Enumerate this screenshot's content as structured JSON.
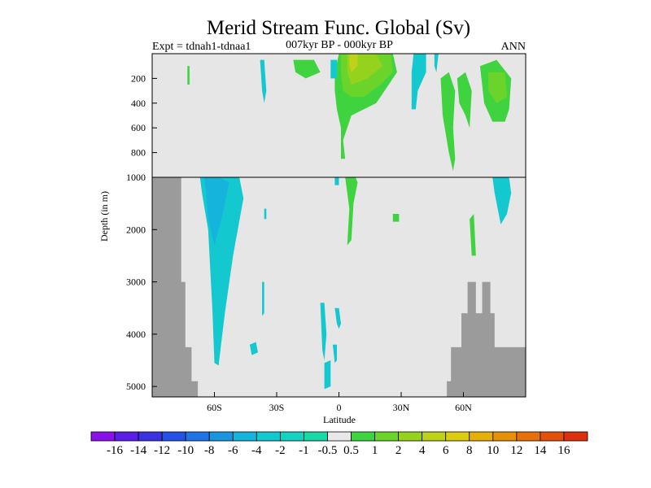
{
  "chart_data": {
    "type": "heatmap",
    "title": "Merid Stream Func. Global (Sv)",
    "subtitle_left": "Expt = tdnah1-tdnaa1",
    "subtitle_center": "007kyr BP - 000kyr BP",
    "subtitle_right": "ANN",
    "xlabel": "Latitude",
    "ylabel": "Depth (in m)",
    "xlim": [
      -90,
      90
    ],
    "x_ticks": [
      {
        "value": -60,
        "label": "60S"
      },
      {
        "value": -30,
        "label": "30S"
      },
      {
        "value": 0,
        "label": "0"
      },
      {
        "value": 30,
        "label": "30N"
      },
      {
        "value": 60,
        "label": "60N"
      }
    ],
    "upper_panel": {
      "ylim": [
        0,
        1000
      ],
      "y_ticks": [
        {
          "value": 200,
          "label": "200"
        },
        {
          "value": 400,
          "label": "400"
        },
        {
          "value": 600,
          "label": "600"
        },
        {
          "value": 800,
          "label": "800"
        },
        {
          "value": 1000,
          "label": "1000"
        }
      ]
    },
    "lower_panel": {
      "ylim": [
        1000,
        5200
      ],
      "y_ticks": [
        {
          "value": 2000,
          "label": "2000"
        },
        {
          "value": 3000,
          "label": "3000"
        },
        {
          "value": 4000,
          "label": "4000"
        },
        {
          "value": 5000,
          "label": "5000"
        }
      ]
    },
    "colorbar": {
      "labels": [
        "-16",
        "-14",
        "-12",
        "-10",
        "-8",
        "-6",
        "-4",
        "-2",
        "-1",
        "-0.5",
        "0.5",
        "1",
        "2",
        "4",
        "6",
        "8",
        "10",
        "12",
        "14",
        "16"
      ],
      "colors": [
        "#8a12e8",
        "#5a1ee6",
        "#3a32dc",
        "#2452e4",
        "#1f74e6",
        "#1a96e0",
        "#14b4dc",
        "#14c8d0",
        "#16d2c0",
        "#1ad9a6",
        "#e8e8e8",
        "#3fd43f",
        "#6ad42a",
        "#94d21e",
        "#bed21a",
        "#dccc12",
        "#e6b008",
        "#e89008",
        "#e6700a",
        "#e2500c",
        "#dc300e"
      ]
    },
    "contours": [
      {
        "name": "contour-acc-neg",
        "level": -2,
        "color": "#14c8d0",
        "points": [
          [
            -67,
            1000
          ],
          [
            -57,
            1000
          ],
          [
            -48,
            1000
          ],
          [
            -46,
            1400
          ],
          [
            -51,
            2500
          ],
          [
            -55,
            3600
          ],
          [
            -58,
            4600
          ],
          [
            -60,
            4550
          ],
          [
            -61,
            3500
          ],
          [
            -63,
            2000
          ],
          [
            -66,
            1300
          ]
        ]
      },
      {
        "name": "contour-acc-neg-core",
        "level": -4,
        "color": "#14b4dc",
        "points": [
          [
            -65,
            1000
          ],
          [
            -58,
            1000
          ],
          [
            -53,
            1100
          ],
          [
            -56,
            1700
          ],
          [
            -60,
            2300
          ],
          [
            -63,
            1800
          ],
          [
            -64,
            1300
          ]
        ]
      },
      {
        "name": "contour-south-upper-neg",
        "level": -2,
        "color": "#14c8d0",
        "points": [
          [
            -38,
            50
          ],
          [
            -36,
            50
          ],
          [
            -35,
            300
          ],
          [
            -36,
            400
          ],
          [
            -37,
            300
          ]
        ]
      },
      {
        "name": "contour-south-deep-neg",
        "level": -2,
        "color": "#14c8d0",
        "points": [
          [
            -37,
            3000
          ],
          [
            -36,
            3000
          ],
          [
            -36,
            3600
          ],
          [
            -37,
            3650
          ]
        ]
      },
      {
        "name": "contour-neg-small-1",
        "level": -2,
        "color": "#14c8d0",
        "points": [
          [
            -43,
            4200
          ],
          [
            -40,
            4150
          ],
          [
            -39,
            4350
          ],
          [
            -42,
            4400
          ]
        ]
      },
      {
        "name": "contour-neg-small-2",
        "level": -2,
        "color": "#14c8d0",
        "points": [
          [
            -9,
            3400
          ],
          [
            -7,
            3400
          ],
          [
            -6,
            4000
          ],
          [
            -7,
            4500
          ],
          [
            -8,
            4300
          ]
        ]
      },
      {
        "name": "contour-neg-small-3",
        "level": -2,
        "color": "#14c8d0",
        "points": [
          [
            -7,
            4550
          ],
          [
            -4,
            4500
          ],
          [
            -4,
            5000
          ],
          [
            -7,
            5050
          ]
        ]
      },
      {
        "name": "contour-neg-small-4",
        "level": -2,
        "color": "#14c8d0",
        "points": [
          [
            -2,
            3500
          ],
          [
            0,
            3500
          ],
          [
            1,
            3800
          ],
          [
            0,
            3900
          ],
          [
            -1,
            3800
          ]
        ]
      },
      {
        "name": "contour-neg-small-5",
        "level": -2,
        "color": "#14c8d0",
        "points": [
          [
            -3,
            4200
          ],
          [
            -1,
            4200
          ],
          [
            -1,
            4500
          ],
          [
            -2,
            4550
          ]
        ]
      },
      {
        "name": "contour-neg-small-6",
        "level": -2,
        "color": "#14c8d0",
        "points": [
          [
            -36,
            1600
          ],
          [
            -35,
            1600
          ],
          [
            -35,
            1800
          ],
          [
            -36,
            1800
          ]
        ]
      },
      {
        "name": "contour-pos-upper-1",
        "level": 1,
        "color": "#3fd43f",
        "points": [
          [
            -73,
            100
          ],
          [
            -72,
            100
          ],
          [
            -72,
            250
          ],
          [
            -73,
            250
          ]
        ]
      },
      {
        "name": "contour-pos-upper-2",
        "level": 1,
        "color": "#3fd43f",
        "points": [
          [
            -22,
            50
          ],
          [
            -12,
            50
          ],
          [
            -9,
            150
          ],
          [
            -16,
            200
          ],
          [
            -21,
            150
          ]
        ]
      },
      {
        "name": "contour-pos-upper-3",
        "level": 1,
        "color": "#3fd43f",
        "points": [
          [
            0,
            0
          ],
          [
            26,
            0
          ],
          [
            28,
            150
          ],
          [
            22,
            300
          ],
          [
            18,
            400
          ],
          [
            12,
            450
          ],
          [
            6,
            500
          ],
          [
            2,
            700
          ],
          [
            3,
            850
          ],
          [
            1,
            850
          ],
          [
            1,
            600
          ],
          [
            -1,
            450
          ],
          [
            -2,
            300
          ],
          [
            -2,
            150
          ]
        ]
      },
      {
        "name": "contour-pos-upper-4",
        "level": 2,
        "color": "#6ad42a",
        "points": [
          [
            1,
            0
          ],
          [
            25,
            0
          ],
          [
            26,
            150
          ],
          [
            20,
            250
          ],
          [
            12,
            350
          ],
          [
            6,
            350
          ],
          [
            2,
            300
          ],
          [
            1,
            150
          ]
        ]
      },
      {
        "name": "contour-pos-upper-5",
        "level": 4,
        "color": "#94d21e",
        "points": [
          [
            4,
            0
          ],
          [
            18,
            0
          ],
          [
            21,
            100
          ],
          [
            14,
            200
          ],
          [
            6,
            250
          ],
          [
            4,
            150
          ]
        ]
      },
      {
        "name": "contour-pos-upper-6",
        "level": 6,
        "color": "#bed21a",
        "points": [
          [
            5,
            0
          ],
          [
            9,
            0
          ],
          [
            9,
            100
          ],
          [
            6,
            150
          ],
          [
            5,
            100
          ]
        ]
      },
      {
        "name": "contour-pos-upper-7",
        "level": 1,
        "color": "#3fd43f",
        "points": [
          [
            49,
            200
          ],
          [
            53,
            150
          ],
          [
            56,
            300
          ],
          [
            55,
            600
          ],
          [
            56,
            850
          ],
          [
            55,
            950
          ],
          [
            53,
            800
          ],
          [
            50,
            500
          ]
        ]
      },
      {
        "name": "contour-pos-upper-8",
        "level": 1,
        "color": "#3fd43f",
        "points": [
          [
            57,
            200
          ],
          [
            61,
            150
          ],
          [
            64,
            300
          ],
          [
            63,
            600
          ],
          [
            61,
            500
          ],
          [
            58,
            400
          ]
        ]
      },
      {
        "name": "contour-pos-upper-9",
        "level": 1,
        "color": "#3fd43f",
        "points": [
          [
            68,
            100
          ],
          [
            76,
            50
          ],
          [
            83,
            200
          ],
          [
            82,
            450
          ],
          [
            80,
            550
          ],
          [
            74,
            550
          ],
          [
            70,
            400
          ]
        ]
      },
      {
        "name": "contour-pos-upper-10",
        "level": 2,
        "color": "#6ad42a",
        "points": [
          [
            72,
            150
          ],
          [
            80,
            150
          ],
          [
            81,
            350
          ],
          [
            76,
            400
          ],
          [
            72,
            300
          ]
        ]
      },
      {
        "name": "contour-neg-upper-11",
        "level": -2,
        "color": "#14c8d0",
        "points": [
          [
            36,
            0
          ],
          [
            42,
            0
          ],
          [
            42,
            150
          ],
          [
            38,
            300
          ],
          [
            37,
            450
          ],
          [
            35,
            450
          ],
          [
            35,
            150
          ]
        ]
      },
      {
        "name": "contour-neg-upper-12",
        "level": -2,
        "color": "#14c8d0",
        "points": [
          [
            46,
            0
          ],
          [
            48,
            0
          ],
          [
            47,
            150
          ],
          [
            46,
            100
          ]
        ]
      },
      {
        "name": "contour-neg-upper-13",
        "level": -2,
        "color": "#14c8d0",
        "points": [
          [
            -4,
            50
          ],
          [
            -1,
            50
          ],
          [
            -1,
            200
          ],
          [
            -4,
            200
          ]
        ]
      },
      {
        "name": "contour-pos-deep-1",
        "level": 1,
        "color": "#3fd43f",
        "points": [
          [
            3,
            1000
          ],
          [
            8,
            1000
          ],
          [
            9,
            1100
          ],
          [
            7,
            1500
          ],
          [
            6,
            2200
          ],
          [
            4,
            2300
          ],
          [
            5,
            1600
          ]
        ]
      },
      {
        "name": "contour-pos-deep-2",
        "level": 1,
        "color": "#3fd43f",
        "points": [
          [
            26,
            1700
          ],
          [
            29,
            1700
          ],
          [
            29,
            1850
          ],
          [
            26,
            1850
          ]
        ]
      },
      {
        "name": "contour-pos-deep-3",
        "level": 1,
        "color": "#3fd43f",
        "points": [
          [
            63,
            1800
          ],
          [
            65,
            1700
          ],
          [
            66,
            2500
          ],
          [
            64,
            2500
          ]
        ]
      },
      {
        "name": "contour-neg-deep-4",
        "level": -2,
        "color": "#14c8d0",
        "points": [
          [
            74,
            1000
          ],
          [
            82,
            1000
          ],
          [
            83,
            1300
          ],
          [
            81,
            1700
          ],
          [
            78,
            1900
          ],
          [
            75,
            1300
          ]
        ]
      },
      {
        "name": "contour-neg-deep-5",
        "level": -2,
        "color": "#14c8d0",
        "points": [
          [
            -2,
            1000
          ],
          [
            0,
            1000
          ],
          [
            0,
            1150
          ],
          [
            -2,
            1150
          ]
        ]
      }
    ],
    "land_masks": [
      {
        "name": "land-south",
        "points": [
          [
            -90,
            1000
          ],
          [
            -76,
            1000
          ],
          [
            -76,
            3000
          ],
          [
            -74,
            3000
          ],
          [
            -74,
            4250
          ],
          [
            -71,
            4250
          ],
          [
            -71,
            4900
          ],
          [
            -68,
            4900
          ],
          [
            -68,
            5200
          ],
          [
            -90,
            5200
          ]
        ]
      },
      {
        "name": "land-north",
        "points": [
          [
            52,
            5200
          ],
          [
            52,
            4900
          ],
          [
            54,
            4900
          ],
          [
            54,
            4250
          ],
          [
            59,
            4250
          ],
          [
            59,
            3600
          ],
          [
            62,
            3600
          ],
          [
            62,
            3000
          ],
          [
            66,
            3000
          ],
          [
            66,
            3600
          ],
          [
            69,
            3600
          ],
          [
            69,
            3000
          ],
          [
            73,
            3000
          ],
          [
            73,
            3600
          ],
          [
            75,
            3600
          ],
          [
            75,
            4250
          ],
          [
            90,
            4250
          ],
          [
            90,
            5200
          ]
        ]
      }
    ]
  }
}
